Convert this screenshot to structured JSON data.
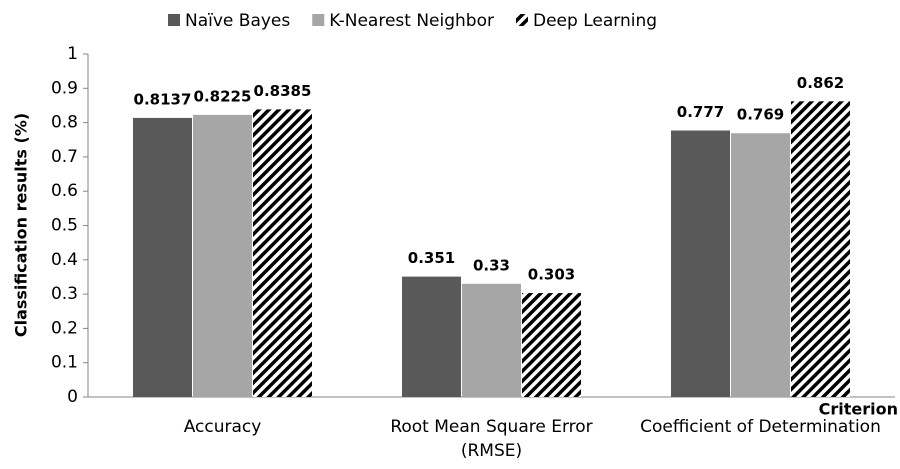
{
  "chart_data": {
    "type": "bar",
    "y_label": "Classification results (%)",
    "x_label": "Criterion",
    "categories": [
      "Accuracy",
      "Root Mean Square Error (RMSE)",
      "Coefficient of Determination"
    ],
    "series": [
      {
        "name": "Naïve Bayes",
        "color": "#595959",
        "values": [
          0.8137,
          0.351,
          0.777
        ]
      },
      {
        "name": "K-Nearest Neighbor",
        "color": "#a6a6a6",
        "values": [
          0.8225,
          0.33,
          0.769
        ]
      },
      {
        "name": "Deep Learning",
        "color": "#000000",
        "pattern": "hatch",
        "values": [
          0.8385,
          0.303,
          0.862
        ]
      }
    ],
    "ylim": [
      0,
      1
    ],
    "yticks": [
      0,
      0.1,
      0.2,
      0.3,
      0.4,
      0.5,
      0.6,
      0.7,
      0.8,
      0.9,
      1
    ],
    "grid": false,
    "legend": "top"
  }
}
